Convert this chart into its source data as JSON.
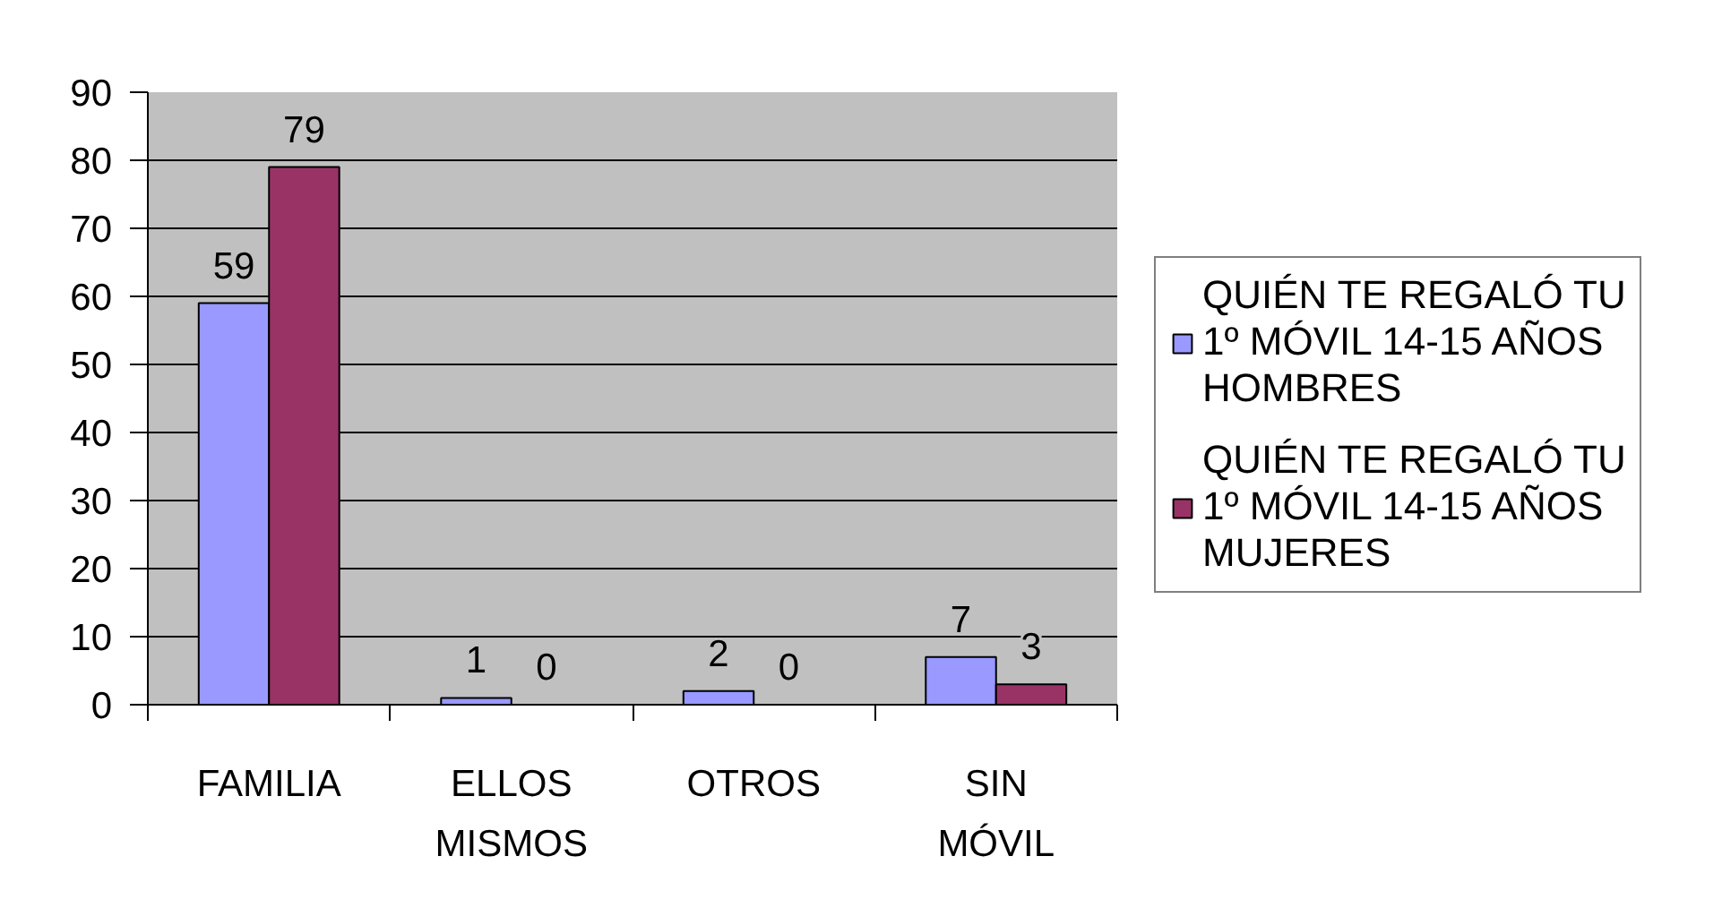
{
  "chart_data": {
    "type": "bar",
    "categories": [
      "FAMILIA",
      "ELLOS MISMOS",
      "OTROS",
      "SIN MÓVIL"
    ],
    "series": [
      {
        "name": "QUIÉN TE REGALÓ TU 1º MÓVIL 14-15 AÑOS HOMBRES",
        "color": "#9999ff",
        "values": [
          59,
          1,
          2,
          7
        ]
      },
      {
        "name": "QUIÉN TE REGALÓ TU 1º MÓVIL 14-15 AÑOS MUJERES",
        "color": "#993366",
        "values": [
          79,
          0,
          0,
          3
        ]
      }
    ],
    "ylim": [
      0,
      90
    ],
    "yticks": [
      0,
      10,
      20,
      30,
      40,
      50,
      60,
      70,
      80,
      90
    ],
    "grid": "y",
    "legend": "right",
    "data_labels": true
  }
}
